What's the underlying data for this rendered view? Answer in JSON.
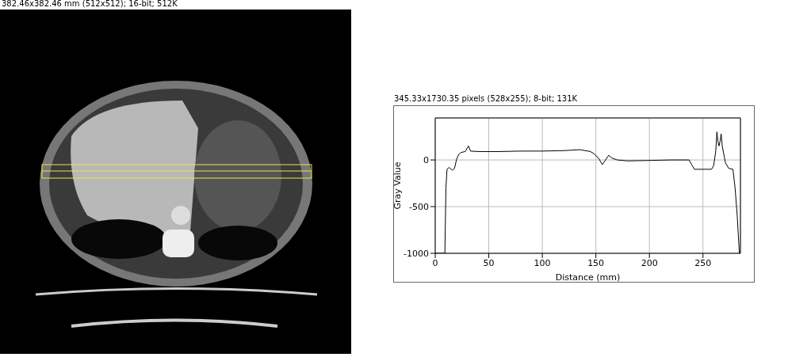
{
  "chart_data": {
    "type": "line",
    "title": "345.33x1730.35 pixels (528x255); 8-bit; 131K",
    "annotations": [
      "382.46x382.46 mm (512x512); 16-bit; 512K"
    ],
    "x_label": "Distance (mm)",
    "y_label": "Gray Value",
    "x": [
      0,
      9,
      10,
      11,
      13,
      16,
      18,
      20,
      22,
      24,
      28,
      31,
      33,
      40,
      60,
      80,
      100,
      120,
      135,
      145,
      149,
      153,
      156,
      159,
      162,
      165,
      170,
      180,
      200,
      220,
      237,
      240,
      242,
      250,
      258,
      260,
      262,
      263,
      264,
      265,
      266,
      267,
      268,
      270,
      271,
      274,
      278,
      280,
      282,
      284
    ],
    "values": [
      -1000,
      -1000,
      -300,
      -100,
      -80,
      -110,
      -90,
      10,
      60,
      80,
      90,
      150,
      95,
      90,
      90,
      95,
      95,
      100,
      110,
      90,
      60,
      10,
      -50,
      0,
      50,
      20,
      0,
      -10,
      -5,
      0,
      0,
      -60,
      -100,
      -100,
      -100,
      -60,
      100,
      300,
      200,
      150,
      200,
      280,
      150,
      30,
      -30,
      -90,
      -100,
      -300,
      -600,
      -1000
    ],
    "color": "#000000",
    "xlim": [
      0,
      285
    ],
    "ylim": [
      -1000,
      450
    ],
    "xticks": [
      0,
      50,
      100,
      150,
      200,
      250
    ],
    "yticks": [
      -1000,
      -500,
      0
    ],
    "grid": true,
    "marker": "none",
    "line_style": "solid"
  }
}
